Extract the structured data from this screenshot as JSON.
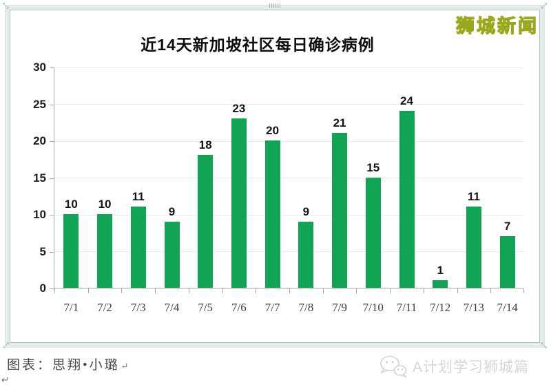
{
  "brand": {
    "text": "狮城新闻",
    "fill_color": "#fcf34a",
    "outline_color": "#9aa81c"
  },
  "chart_data": {
    "type": "bar",
    "title": "近14天新加坡社区每日确诊病例",
    "categories": [
      "7/1",
      "7/2",
      "7/3",
      "7/4",
      "7/5",
      "7/6",
      "7/7",
      "7/8",
      "7/9",
      "7/10",
      "7/11",
      "7/12",
      "7/13",
      "7/14"
    ],
    "values": [
      10,
      10,
      11,
      9,
      18,
      23,
      20,
      9,
      21,
      15,
      24,
      1,
      11,
      7
    ],
    "xlabel": "",
    "ylabel": "",
    "ylim": [
      0,
      30
    ],
    "ytick_step": 5,
    "yticks": [
      0,
      5,
      10,
      15,
      20,
      25,
      30
    ],
    "grid": true,
    "legend": "none",
    "value_labels": true,
    "bar_color": "#12a455",
    "axis_color": "#a6a6a6",
    "grid_color": "#eaeaea",
    "value_label_color": "#141414"
  },
  "footer": {
    "caption_label": "图表：思翔•小璐",
    "return_mark": "↵",
    "watermark_text": "A计划学习狮城篇",
    "watermark_icon": "wechat-icon"
  }
}
